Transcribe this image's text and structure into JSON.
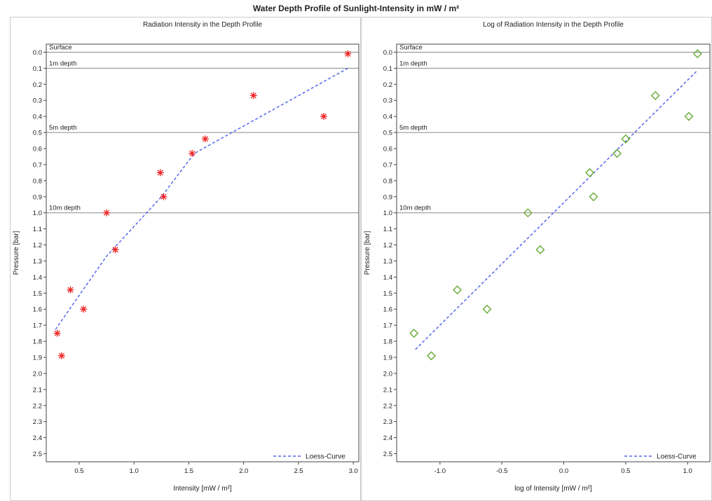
{
  "title": "Water Depth Profile of Sunlight-Intensity in mW / m²",
  "colors": {
    "star_marker": "#ee2222",
    "diamond_marker": "#66aa33",
    "loess_line": "#5566ee",
    "reference_line": "#8a8a8a",
    "frame": "#444444"
  },
  "chart_data": [
    {
      "type": "scatter",
      "title": "Radiation Intensity in the Depth Profile",
      "xlabel": "Intensity [mW / m²]",
      "ylabel": "Pressure [bar]",
      "xlim": [
        0.2,
        3.05
      ],
      "ylim": [
        2.55,
        -0.05
      ],
      "y_reversed": true,
      "xticks": [
        0.5,
        1.0,
        1.5,
        2.0,
        2.5,
        3.0
      ],
      "xtick_labels": [
        "0.5",
        "1.0",
        "1.5",
        "2.0",
        "2.5",
        "3.0"
      ],
      "yticks": [
        0.0,
        0.1,
        0.2,
        0.3,
        0.4,
        0.5,
        0.6,
        0.7,
        0.8,
        0.9,
        1.0,
        1.1,
        1.2,
        1.3,
        1.4,
        1.5,
        1.6,
        1.7,
        1.8,
        1.9,
        2.0,
        2.1,
        2.2,
        2.3,
        2.4,
        2.5
      ],
      "ytick_labels": [
        "0.0",
        "0.1",
        "0.2",
        "0.3",
        "0.4",
        "0.5",
        "0.6",
        "0.7",
        "0.8",
        "0.9",
        "1.0",
        "1.1",
        "1.2",
        "1.3",
        "1.4",
        "1.5",
        "1.6",
        "1.7",
        "1.8",
        "1.9",
        "2.0",
        "2.1",
        "2.2",
        "2.3",
        "2.4",
        "2.5"
      ],
      "reference_lines": [
        {
          "y": 0.0,
          "label": "Surface"
        },
        {
          "y": 0.1,
          "label": "1m depth"
        },
        {
          "y": 0.5,
          "label": "5m depth"
        },
        {
          "y": 1.0,
          "label": "10m depth"
        }
      ],
      "marker": "star",
      "points": {
        "x": [
          2.95,
          2.09,
          2.73,
          1.65,
          1.53,
          1.24,
          1.27,
          0.75,
          0.83,
          0.42,
          0.54,
          0.3,
          0.34
        ],
        "y": [
          0.01,
          0.27,
          0.4,
          0.54,
          0.63,
          0.75,
          0.9,
          1.0,
          1.23,
          1.48,
          1.6,
          1.75,
          1.89
        ]
      },
      "loess": {
        "name": "Loess-Curve",
        "x": [
          2.95,
          1.55,
          1.25,
          0.75,
          0.28
        ],
        "y": [
          0.1,
          0.63,
          0.9,
          1.27,
          1.73
        ]
      },
      "legend": "bottom-right",
      "grid": false
    },
    {
      "type": "scatter",
      "title": "Log of Radiation Intensity in the Depth Profile",
      "xlabel": "log of Intensity [mW / m²]",
      "ylabel": "Pressure [bar]",
      "xlim": [
        -1.35,
        1.18
      ],
      "ylim": [
        2.55,
        -0.05
      ],
      "y_reversed": true,
      "xticks": [
        -1.0,
        -0.5,
        0.0,
        0.5,
        1.0
      ],
      "xtick_labels": [
        "-1.0",
        "-0.5",
        "0.0",
        "0.5",
        "1.0"
      ],
      "yticks": [
        0.0,
        0.1,
        0.2,
        0.3,
        0.4,
        0.5,
        0.6,
        0.7,
        0.8,
        0.9,
        1.0,
        1.1,
        1.2,
        1.3,
        1.4,
        1.5,
        1.6,
        1.7,
        1.8,
        1.9,
        2.0,
        2.1,
        2.2,
        2.3,
        2.4,
        2.5
      ],
      "ytick_labels": [
        "0.0",
        "0.1",
        "0.2",
        "0.3",
        "0.4",
        "0.5",
        "0.6",
        "0.7",
        "0.8",
        "0.9",
        "1.0",
        "1.1",
        "1.2",
        "1.3",
        "1.4",
        "1.5",
        "1.6",
        "1.7",
        "1.8",
        "1.9",
        "2.0",
        "2.1",
        "2.2",
        "2.3",
        "2.4",
        "2.5"
      ],
      "reference_lines": [
        {
          "y": 0.0,
          "label": "Surface"
        },
        {
          "y": 0.1,
          "label": "1m depth"
        },
        {
          "y": 0.5,
          "label": "5m depth"
        },
        {
          "y": 1.0,
          "label": "10m depth"
        }
      ],
      "marker": "diamond",
      "points": {
        "x": [
          1.08,
          0.74,
          1.01,
          0.5,
          0.43,
          0.21,
          0.24,
          -0.29,
          -0.19,
          -0.86,
          -0.62,
          -1.21,
          -1.07
        ],
        "y": [
          0.01,
          0.27,
          0.4,
          0.54,
          0.63,
          0.75,
          0.9,
          1.0,
          1.23,
          1.48,
          1.6,
          1.75,
          1.89
        ]
      },
      "loess": {
        "name": "Loess-Curve",
        "x": [
          1.07,
          -1.21
        ],
        "y": [
          0.12,
          1.86
        ]
      },
      "legend": "bottom-right",
      "grid": false
    }
  ]
}
